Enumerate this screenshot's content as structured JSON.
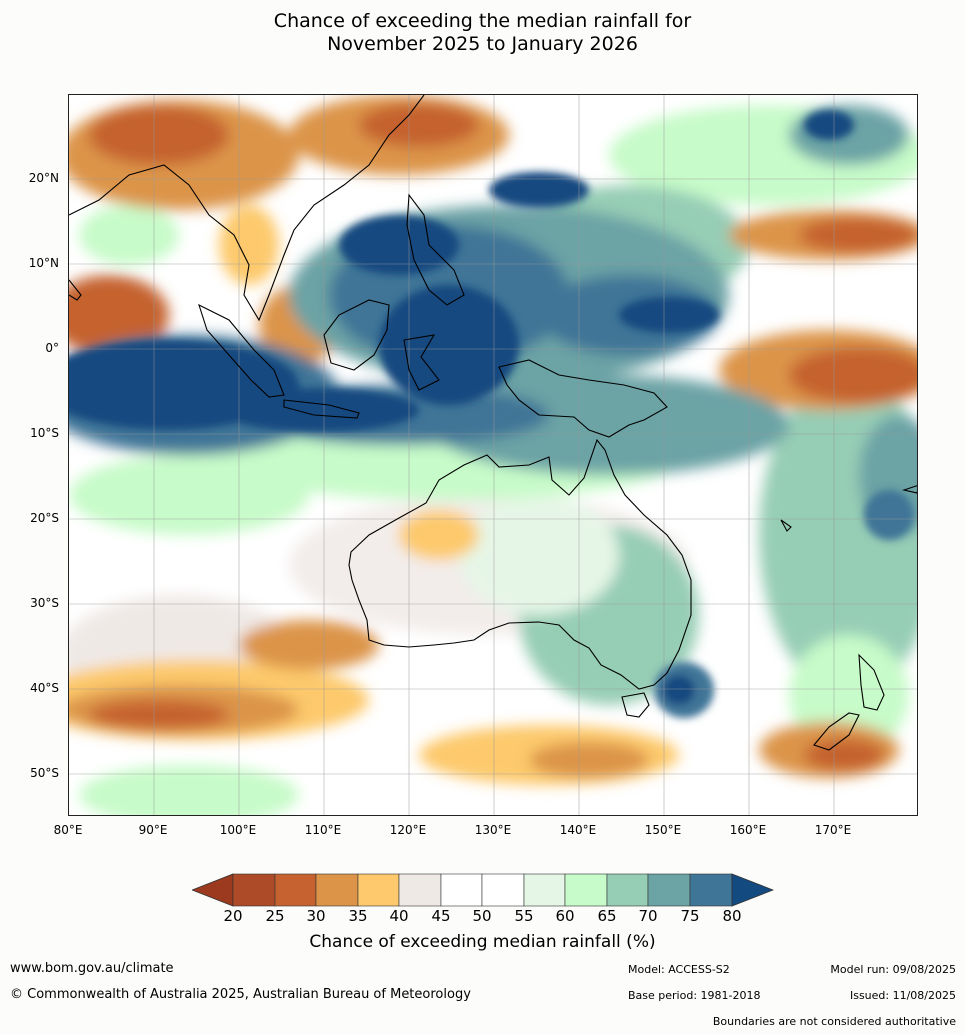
{
  "title": {
    "line1": "Chance of exceeding the median rainfall for",
    "line2": "November 2025 to January 2026"
  },
  "map": {
    "lat_labels": [
      "20°N",
      "10°N",
      "0°",
      "10°S",
      "20°S",
      "30°S",
      "40°S",
      "50°S"
    ],
    "lon_labels": [
      "80°E",
      "90°E",
      "100°E",
      "110°E",
      "120°E",
      "130°E",
      "140°E",
      "150°E",
      "160°E",
      "170°E"
    ],
    "colors": {
      "p20": "#9b3a1f",
      "p25": "#ad4b28",
      "p30": "#c5622f",
      "p35": "#dc9448",
      "p40": "#fdc96c",
      "p45": "#efe9e6",
      "p50": "#ffffff",
      "p55": "#ffffff",
      "p60": "#e6f6e6",
      "p65": "#c7fbc9",
      "p70": "#96cdb5",
      "p75": "#6ca3a5",
      "p80": "#3f7597",
      "p80plus": "#134a80"
    }
  },
  "colorbar": {
    "ticks": [
      "20",
      "25",
      "30",
      "35",
      "40",
      "45",
      "50",
      "55",
      "60",
      "65",
      "70",
      "75",
      "80"
    ],
    "title": "Chance of exceeding median rainfall (%)"
  },
  "footer": {
    "url": "www.bom.gov.au/climate",
    "copyright": "© Commonwealth of Australia 2025, Australian Bureau of Meteorology",
    "model": "Model: ACCESS-S2",
    "base_period": "Base period: 1981-2018",
    "model_run": "Model run: 09/08/2025",
    "issued": "Issued: 11/08/2025",
    "disclaimer": "Boundaries are not considered authoritative"
  }
}
